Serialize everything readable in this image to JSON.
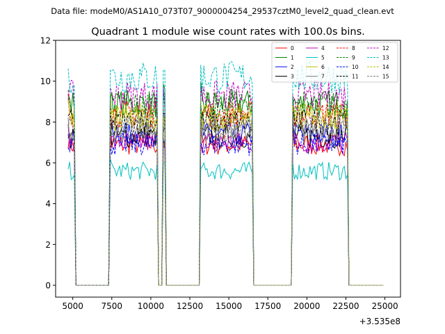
{
  "chart_data": {
    "type": "line",
    "suptitle": "Data file: modeM0/AS1A10_073T07_9000004254_29537cztM0_level2_quad_clean.evt",
    "title": "Quadrant 1 module wise count rates with 100.0s bins.",
    "xlabel": "",
    "ylabel": "",
    "x_offset_label": "+3.535e8",
    "xlim": [
      3900,
      26000
    ],
    "ylim": [
      -0.58,
      12
    ],
    "x_ticks": [
      5000,
      7500,
      10000,
      12500,
      15000,
      17500,
      20000,
      22500,
      25000
    ],
    "x_tick_labels": [
      "5000",
      "7500",
      "10000",
      "12500",
      "15000",
      "17500",
      "20000",
      "22500",
      "25000"
    ],
    "y_ticks": [
      0,
      2,
      4,
      6,
      8,
      10,
      12
    ],
    "y_tick_labels": [
      "0",
      "2",
      "4",
      "6",
      "8",
      "10",
      "12"
    ],
    "legend_position": "top-right",
    "segments": [
      {
        "start": 4700,
        "end": 5100
      },
      {
        "start": 7400,
        "end": 10400
      },
      {
        "start": 10800,
        "end": 10950
      },
      {
        "start": 13200,
        "end": 16500
      },
      {
        "start": 19100,
        "end": 22600
      },
      {
        "start": 24900,
        "end": 24950
      }
    ],
    "bin_width": 100,
    "series": [
      {
        "name": "0",
        "color": "#ff0000",
        "dash": "solid",
        "level": 6.9
      },
      {
        "name": "1",
        "color": "#008000",
        "dash": "solid",
        "level": 8.9
      },
      {
        "name": "2",
        "color": "#0000ff",
        "dash": "solid",
        "level": 7.4
      },
      {
        "name": "3",
        "color": "#000000",
        "dash": "solid",
        "level": 7.3
      },
      {
        "name": "4",
        "color": "#bf00bf",
        "dash": "solid",
        "level": 7.0
      },
      {
        "name": "5",
        "color": "#00bfbf",
        "dash": "solid",
        "level": 5.6
      },
      {
        "name": "6",
        "color": "#bfbf00",
        "dash": "solid",
        "level": 8.3
      },
      {
        "name": "7",
        "color": "#808080",
        "dash": "solid",
        "level": 7.6
      },
      {
        "name": "8",
        "color": "#ff0000",
        "dash": "dashed",
        "level": 8.4
      },
      {
        "name": "9",
        "color": "#008000",
        "dash": "dashed",
        "level": 8.8
      },
      {
        "name": "10",
        "color": "#0000ff",
        "dash": "dashed",
        "level": 6.9
      },
      {
        "name": "11",
        "color": "#000000",
        "dash": "dashed",
        "level": 8.0
      },
      {
        "name": "12",
        "color": "#bf00bf",
        "dash": "dashed",
        "level": 9.3
      },
      {
        "name": "13",
        "color": "#00bfbf",
        "dash": "dashed",
        "level": 10.2
      },
      {
        "name": "14",
        "color": "#bfbf00",
        "dash": "dashed",
        "level": 8.1
      },
      {
        "name": "15",
        "color": "#808080",
        "dash": "dashed",
        "level": 7.8
      }
    ]
  }
}
